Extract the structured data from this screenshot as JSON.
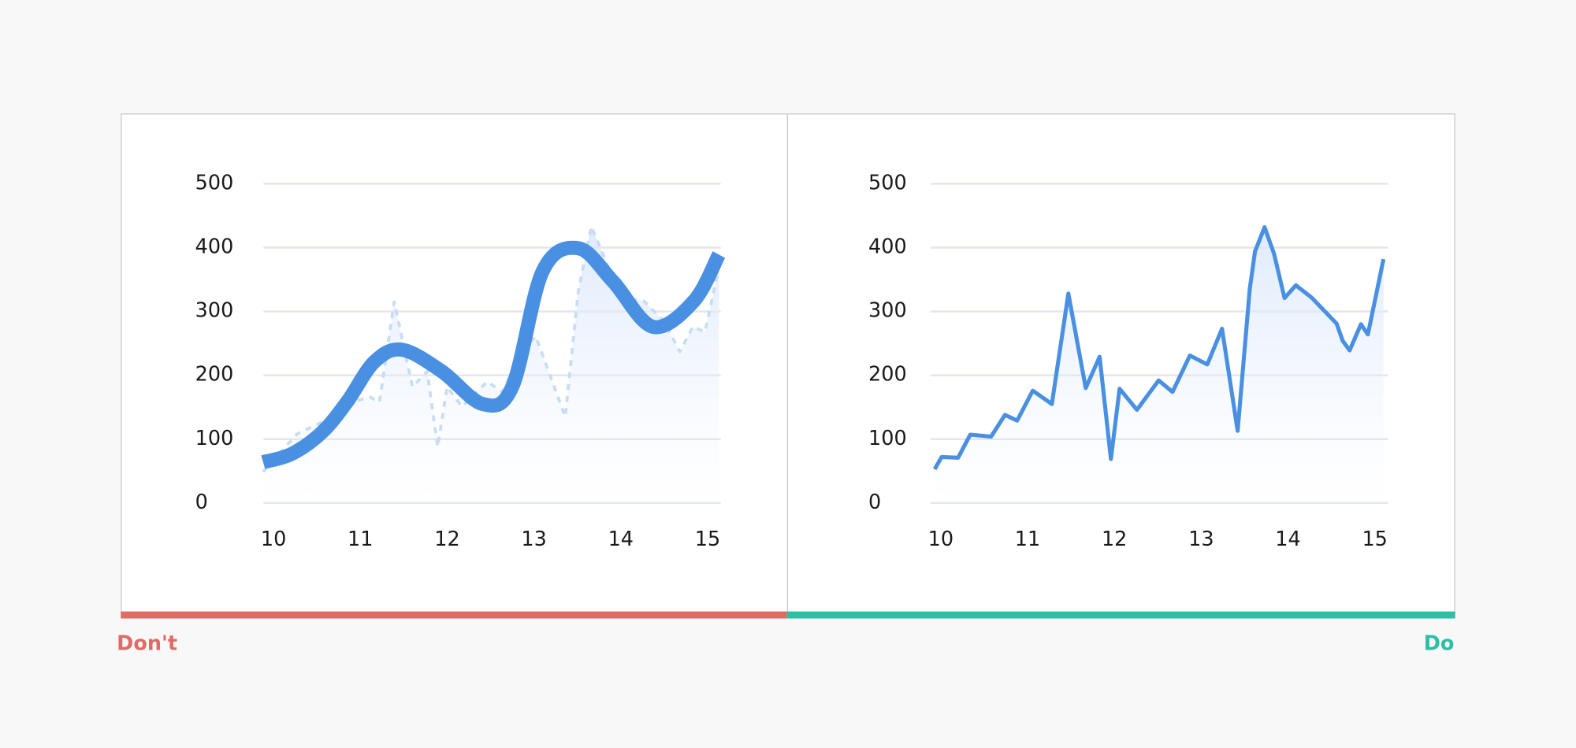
{
  "chart_data": [
    {
      "type": "line",
      "caption": "Don't",
      "caption_color": "#e06b66",
      "xlim": [
        10,
        15
      ],
      "xticks": [
        10,
        11,
        12,
        13,
        14,
        15
      ],
      "ylim": [
        0,
        500
      ],
      "yticks": [
        0,
        100,
        200,
        300,
        400,
        500
      ],
      "grid": true,
      "series": [
        {
          "color": "#c9dcf3",
          "style": "dashed",
          "x": [
            9.88,
            10.27,
            10.61,
            10.9,
            11.11,
            11.22,
            11.39,
            11.6,
            11.77,
            11.89,
            12.0,
            12.17,
            12.46,
            12.64,
            12.85,
            13.02,
            13.36,
            13.51,
            13.66,
            13.84,
            13.98,
            14.27,
            14.5,
            14.68,
            14.83,
            14.97,
            15.13
          ],
          "values": [
            49,
            108,
            130,
            158,
            166,
            158,
            315,
            182,
            206,
            88,
            182,
            151,
            190,
            174,
            237,
            261,
            135,
            331,
            433,
            375,
            323,
            316,
            284,
            237,
            276,
            268,
            370
          ]
        },
        {
          "color": "#4a90e2",
          "style": "smooth",
          "x": [
            9.88,
            10.21,
            10.56,
            10.85,
            11.16,
            11.48,
            11.94,
            12.41,
            12.75,
            13.1,
            13.51,
            13.91,
            14.37,
            14.84,
            15.13
          ],
          "values": [
            64,
            77,
            111,
            159,
            221,
            240,
            206,
            155,
            182,
            363,
            399,
            347,
            276,
            316,
            389
          ]
        }
      ]
    },
    {
      "type": "line",
      "caption": "Do",
      "caption_color": "#2bbfa4",
      "xlim": [
        10,
        15
      ],
      "xticks": [
        10,
        11,
        12,
        13,
        14,
        15
      ],
      "ylim": [
        0,
        500
      ],
      "yticks": [
        0,
        100,
        200,
        300,
        400,
        500
      ],
      "grid": true,
      "series": [
        {
          "color": "#4a90e2",
          "style": "solid",
          "x": [
            9.93,
            10.01,
            10.2,
            10.34,
            10.58,
            10.74,
            10.88,
            11.06,
            11.28,
            11.47,
            11.67,
            11.83,
            11.96,
            12.06,
            12.26,
            12.51,
            12.67,
            12.87,
            13.07,
            13.24,
            13.42,
            13.56,
            13.62,
            13.73,
            13.84,
            13.96,
            14.09,
            14.27,
            14.56,
            14.63,
            14.71,
            14.84,
            14.92,
            15.1
          ],
          "values": [
            53,
            72,
            71,
            107,
            104,
            138,
            129,
            176,
            155,
            328,
            180,
            229,
            69,
            179,
            146,
            192,
            174,
            231,
            217,
            273,
            113,
            336,
            394,
            432,
            390,
            321,
            341,
            322,
            281,
            254,
            239,
            280,
            264,
            382
          ]
        }
      ]
    }
  ]
}
